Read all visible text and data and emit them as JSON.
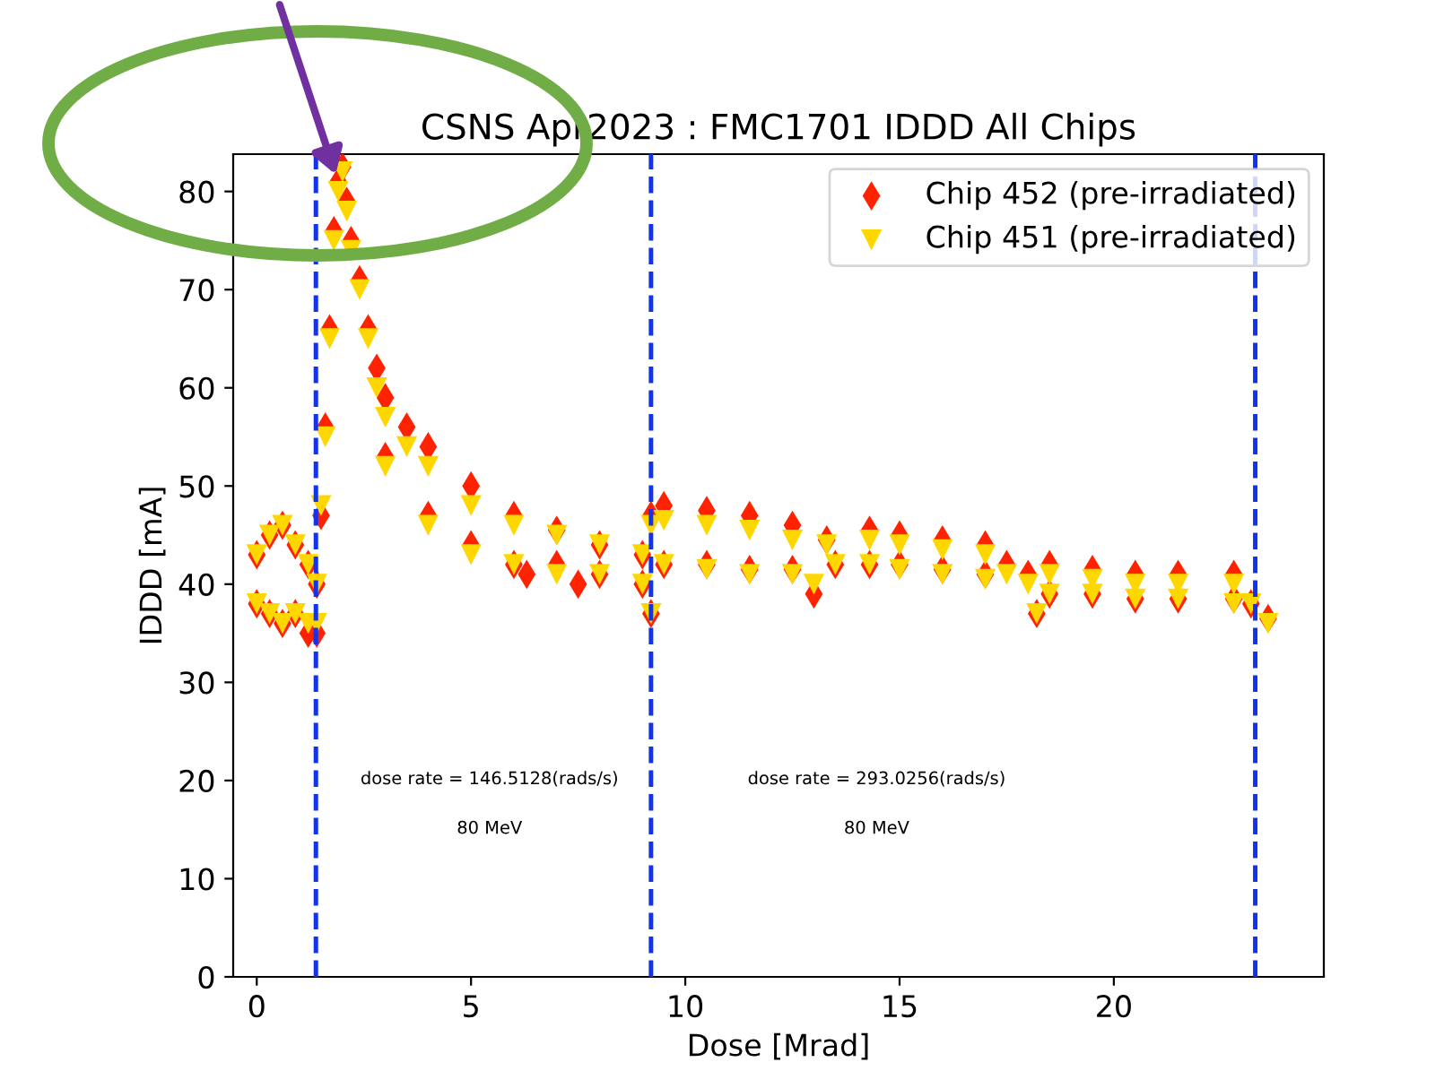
{
  "chart_data": {
    "type": "scatter",
    "title": "CSNS Apr2023 : FMC1701 IDDD All Chips",
    "xlabel": "Dose [Mrad]",
    "ylabel": "IDDD [mA]",
    "xlim": [
      -0.55,
      24.9
    ],
    "ylim": [
      0,
      83.8
    ],
    "xticks": [
      0,
      5,
      10,
      15,
      20
    ],
    "yticks": [
      0,
      10,
      20,
      30,
      40,
      50,
      60,
      70,
      80
    ],
    "grid": false,
    "legend": "top right",
    "series": [
      {
        "name": "Chip 452 (pre-irradiated)",
        "color": "#ff2200",
        "marker": "diamond",
        "x": [
          0,
          0,
          0.3,
          0.3,
          0.6,
          0.6,
          0.9,
          0.9,
          1.2,
          1.2,
          1.4,
          1.4,
          1.5,
          1.6,
          1.7,
          1.8,
          1.9,
          2.0,
          2.1,
          2.2,
          2.4,
          2.6,
          2.8,
          3.0,
          3.0,
          3.5,
          4,
          4,
          5,
          5,
          6,
          6,
          6.3,
          7,
          7,
          7.5,
          8,
          8,
          9,
          9,
          9.2,
          9.2,
          9.5,
          9.5,
          10.5,
          10.5,
          11.5,
          11.5,
          12.5,
          12.5,
          13.0,
          13.3,
          13.5,
          14.3,
          14.3,
          15,
          15,
          16,
          16,
          17,
          17,
          17.5,
          18,
          18.2,
          18.5,
          18.5,
          19.5,
          19.5,
          20.5,
          20.5,
          21.5,
          21.5,
          22.8,
          22.8,
          23.2,
          23.6
        ],
        "values": [
          38,
          43,
          37,
          45,
          36,
          46,
          37,
          44,
          35,
          42,
          35,
          40,
          47,
          56,
          66,
          76,
          81,
          82.5,
          79,
          75,
          71,
          66,
          62,
          59,
          53,
          56,
          54,
          47,
          50,
          44,
          47,
          42,
          41,
          45.5,
          42,
          40,
          44,
          41,
          43,
          40,
          37,
          47,
          48,
          42,
          47.5,
          42,
          47,
          41.5,
          46,
          41.5,
          39,
          44.5,
          42,
          45.5,
          42,
          45,
          42,
          44.5,
          41.5,
          44,
          41,
          42,
          41,
          37,
          42,
          39,
          41.5,
          39,
          41,
          38.5,
          41,
          38.5,
          41,
          38.5,
          38,
          36.5
        ]
      },
      {
        "name": "Chip 451 (pre-irradiated)",
        "color": "#ffd700",
        "marker": "triangle",
        "x": [
          0,
          0,
          0.3,
          0.3,
          0.6,
          0.6,
          0.9,
          0.9,
          1.2,
          1.2,
          1.4,
          1.4,
          1.5,
          1.6,
          1.7,
          1.8,
          1.9,
          2.0,
          2.1,
          2.2,
          2.4,
          2.6,
          2.8,
          3.0,
          3.0,
          3.5,
          4,
          4,
          5,
          5,
          6,
          6,
          7,
          7,
          8,
          8,
          9,
          9,
          9.2,
          9.2,
          9.5,
          9.5,
          10.5,
          10.5,
          11.5,
          11.5,
          12.5,
          12.5,
          13.0,
          13.3,
          13.5,
          14.3,
          14.3,
          15,
          15,
          16,
          16,
          17,
          17,
          17.5,
          18,
          18.2,
          18.5,
          18.5,
          19.5,
          19.5,
          20.5,
          20.5,
          21.5,
          21.5,
          22.8,
          22.8,
          23.2,
          23.6
        ],
        "values": [
          38,
          43,
          37,
          45,
          36,
          46,
          37,
          44,
          36,
          42,
          36,
          40,
          48,
          55,
          65,
          75,
          80,
          82,
          78,
          74,
          70,
          65,
          60,
          57,
          52,
          54,
          52,
          46,
          48,
          43,
          46,
          42,
          45,
          41,
          44,
          41,
          43,
          40,
          37,
          46,
          46.5,
          42,
          46,
          41.5,
          45.5,
          41,
          44.5,
          41,
          40,
          44,
          42,
          44.5,
          42,
          44,
          41.5,
          43.5,
          41,
          43,
          40.5,
          41,
          40,
          37,
          41,
          39,
          40.5,
          39,
          40,
          38.5,
          40,
          38.5,
          40,
          38,
          38,
          36
        ]
      }
    ],
    "ref_lines": [
      {
        "axis": "x",
        "value": 1.38,
        "color": "#1133ee",
        "line_style": "dashed"
      },
      {
        "axis": "x",
        "value": 9.2,
        "color": "#1133ee",
        "line_style": "dashed"
      },
      {
        "axis": "x",
        "value": 23.3,
        "color": "#1133ee",
        "line_style": "dashed"
      }
    ],
    "annotations": [
      "dose rate = 146.5128(rads/s)",
      "80 MeV",
      "dose rate = 293.0256(rads/s)",
      "80 MeV"
    ]
  }
}
